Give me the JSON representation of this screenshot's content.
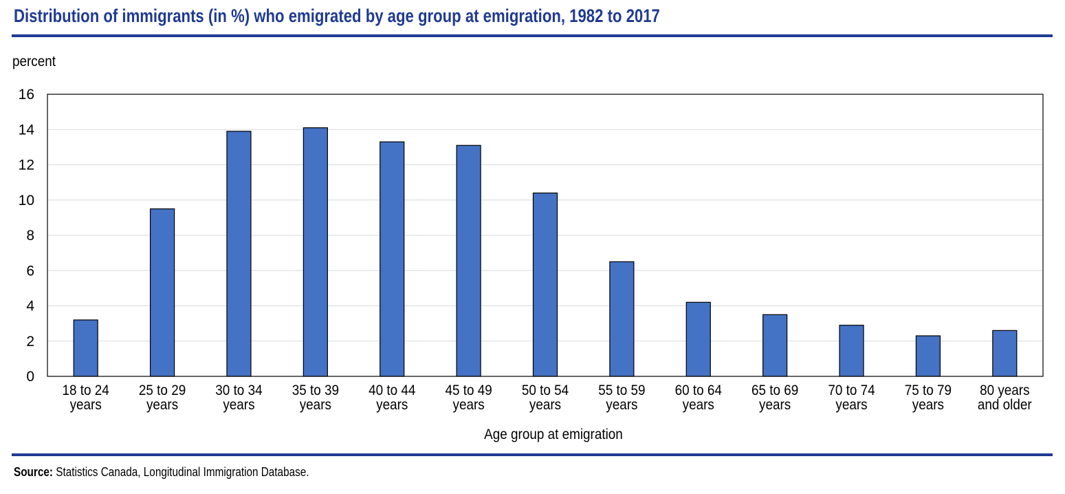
{
  "title": "Distribution of immigrants (in %) who emigrated by age group at emigration, 1982 to 2017",
  "source_label": "Source:",
  "source_text": "Statistics Canada, Longitudinal Immigration Database.",
  "colors": {
    "bar": "#4472c4",
    "rule": "#1f3a93",
    "grid": "#d9d9d9"
  },
  "chart_data": {
    "type": "bar",
    "ylabel": "percent",
    "xlabel": "Age group at emigration",
    "ylim": [
      0,
      16
    ],
    "yticks": [
      0,
      2,
      4,
      6,
      8,
      10,
      12,
      14,
      16
    ],
    "grid": true,
    "categories": [
      [
        "18 to 24",
        "years"
      ],
      [
        "25 to 29",
        "years"
      ],
      [
        "30 to 34",
        "years"
      ],
      [
        "35 to 39",
        "years"
      ],
      [
        "40 to 44",
        "years"
      ],
      [
        "45 to 49",
        "years"
      ],
      [
        "50 to 54",
        "years"
      ],
      [
        "55 to 59",
        "years"
      ],
      [
        "60 to 64",
        "years"
      ],
      [
        "65 to 69",
        "years"
      ],
      [
        "70 to 74",
        "years"
      ],
      [
        "75 to 79",
        "years"
      ],
      [
        "80 years",
        "and older"
      ]
    ],
    "values": [
      3.2,
      9.5,
      13.9,
      14.1,
      13.3,
      13.1,
      10.4,
      6.5,
      4.2,
      3.5,
      2.9,
      2.3,
      2.6
    ]
  }
}
